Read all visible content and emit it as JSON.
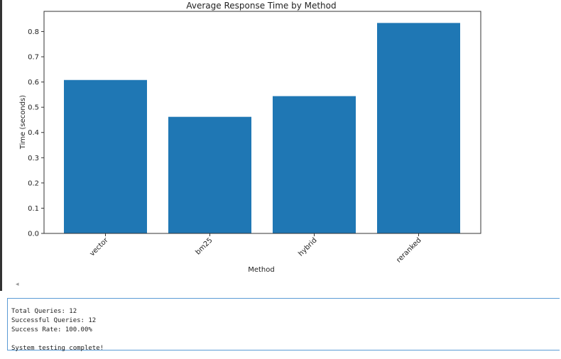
{
  "chart_data": {
    "type": "bar",
    "title": "Average Response Time by Method",
    "x_label": "Method",
    "y_label": "Time (seconds)",
    "categories": [
      "vector",
      "bm25",
      "hybrid",
      "reranked"
    ],
    "values": [
      0.608,
      0.462,
      0.544,
      0.834
    ],
    "color": "#1f77b4",
    "ylim": [
      0,
      0.88
    ],
    "yticks": [
      {
        "value": 0,
        "label": "0.0"
      },
      0.1,
      0.2,
      0.3,
      0.4,
      0.5,
      0.6,
      0.7,
      0.8
    ]
  },
  "output": {
    "blocks": [
      [
        "Total Queries: 12",
        "Successful Queries: 12",
        "Success Rate: 100.00%"
      ],
      [
        "System testing complete!"
      ]
    ]
  }
}
